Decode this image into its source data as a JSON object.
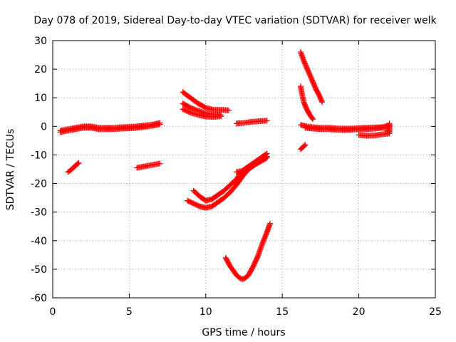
{
  "chart_data": {
    "type": "scatter",
    "title": "Day 078 of 2019, Sidereal Day-to-day VTEC variation (SDTVAR) for receiver welk",
    "xlabel": "GPS time / hours",
    "ylabel": "SDTVAR / TECUs",
    "xlim": [
      0,
      25
    ],
    "ylim": [
      -60,
      30
    ],
    "xticks": [
      0,
      5,
      10,
      15,
      20,
      25
    ],
    "yticks": [
      -60,
      -50,
      -40,
      -30,
      -20,
      -10,
      0,
      10,
      20,
      30
    ],
    "grid": true,
    "legend": "none",
    "marker": "+",
    "color": "#ff0000",
    "series": [
      {
        "points": [
          [
            0.5,
            -2
          ],
          [
            1.0,
            -1.5
          ],
          [
            1.5,
            -1
          ],
          [
            2.0,
            -0.5
          ],
          [
            2.5,
            -0.5
          ],
          [
            3.0,
            -1
          ],
          [
            3.5,
            -1
          ],
          [
            4.0,
            -1
          ],
          [
            4.5,
            -0.8
          ],
          [
            5.0,
            -0.7
          ],
          [
            5.5,
            -0.5
          ],
          [
            6.0,
            -0.2
          ],
          [
            6.5,
            0.2
          ],
          [
            7.0,
            0.7
          ]
        ]
      },
      {
        "points": [
          [
            0.5,
            -1.5
          ],
          [
            1.0,
            -1
          ],
          [
            1.5,
            -0.5
          ],
          [
            2.0,
            0
          ],
          [
            2.5,
            0
          ],
          [
            3.0,
            -0.5
          ],
          [
            3.5,
            -0.5
          ],
          [
            4.0,
            -0.5
          ],
          [
            4.5,
            -0.3
          ],
          [
            5.0,
            -0.2
          ],
          [
            5.5,
            0
          ],
          [
            6.0,
            0.3
          ],
          [
            6.5,
            0.6
          ],
          [
            7.0,
            1.2
          ]
        ]
      },
      {
        "points": [
          [
            1.0,
            -16
          ],
          [
            1.2,
            -15.2
          ],
          [
            1.4,
            -14.2
          ],
          [
            1.6,
            -13.2
          ],
          [
            1.7,
            -12.8
          ]
        ]
      },
      {
        "points": [
          [
            5.5,
            -14.5
          ],
          [
            6.0,
            -14
          ],
          [
            6.5,
            -13.5
          ],
          [
            7.0,
            -13
          ]
        ]
      },
      {
        "points": [
          [
            8.5,
            12
          ],
          [
            9.0,
            10
          ],
          [
            9.5,
            8
          ],
          [
            10.0,
            6.5
          ],
          [
            10.5,
            5.8
          ],
          [
            11.0,
            5.8
          ],
          [
            11.5,
            5.6
          ]
        ]
      },
      {
        "points": [
          [
            8.5,
            8
          ],
          [
            9.0,
            6.5
          ],
          [
            9.5,
            5.5
          ],
          [
            10.0,
            4.5
          ],
          [
            10.5,
            4.2
          ],
          [
            11.0,
            4
          ]
        ]
      },
      {
        "points": [
          [
            8.5,
            6
          ],
          [
            9.0,
            4.8
          ],
          [
            9.5,
            4
          ],
          [
            10.0,
            3.4
          ],
          [
            10.5,
            3.3
          ],
          [
            11.0,
            3.5
          ]
        ]
      },
      {
        "points": [
          [
            12.0,
            1
          ],
          [
            12.5,
            1.2
          ],
          [
            13.0,
            1.6
          ],
          [
            13.5,
            1.8
          ],
          [
            14.0,
            2
          ]
        ]
      },
      {
        "points": [
          [
            9.2,
            -22.5
          ],
          [
            9.6,
            -24.5
          ],
          [
            10.0,
            -26
          ],
          [
            10.4,
            -25.5
          ],
          [
            10.8,
            -24
          ],
          [
            11.2,
            -22.5
          ],
          [
            11.6,
            -20.5
          ],
          [
            12.0,
            -18.5
          ],
          [
            12.4,
            -15.5
          ],
          [
            12.8,
            -14
          ],
          [
            13.2,
            -12.5
          ],
          [
            13.6,
            -11
          ],
          [
            14.0,
            -9.5
          ]
        ]
      },
      {
        "points": [
          [
            8.8,
            -26
          ],
          [
            9.2,
            -27
          ],
          [
            9.6,
            -28
          ],
          [
            10.0,
            -28.5
          ],
          [
            10.4,
            -28
          ],
          [
            10.8,
            -26.5
          ],
          [
            11.2,
            -25
          ],
          [
            11.6,
            -23
          ],
          [
            12.0,
            -20.5
          ],
          [
            12.4,
            -17.5
          ],
          [
            12.8,
            -15
          ],
          [
            13.2,
            -13.5
          ],
          [
            13.6,
            -12
          ],
          [
            14.0,
            -10.5
          ]
        ]
      },
      {
        "points": [
          [
            12.0,
            -16
          ],
          [
            12.5,
            -15.5
          ],
          [
            13.0,
            -14
          ],
          [
            13.5,
            -12.5
          ],
          [
            14.0,
            -11
          ]
        ]
      },
      {
        "points": [
          [
            11.3,
            -46
          ],
          [
            11.6,
            -49
          ],
          [
            12.0,
            -52
          ],
          [
            12.2,
            -53
          ],
          [
            12.4,
            -53.5
          ],
          [
            12.6,
            -53
          ],
          [
            12.8,
            -52
          ],
          [
            13.1,
            -49
          ],
          [
            13.4,
            -45.5
          ],
          [
            13.7,
            -41
          ],
          [
            14.0,
            -37
          ],
          [
            14.2,
            -34
          ]
        ]
      },
      {
        "points": [
          [
            16.2,
            26
          ],
          [
            16.4,
            23
          ],
          [
            16.6,
            20.5
          ],
          [
            16.8,
            18
          ],
          [
            17.0,
            15.5
          ],
          [
            17.2,
            13
          ],
          [
            17.4,
            11
          ],
          [
            17.6,
            8.5
          ]
        ]
      },
      {
        "points": [
          [
            16.2,
            14
          ],
          [
            16.3,
            11
          ],
          [
            16.4,
            8.5
          ],
          [
            16.6,
            6
          ],
          [
            16.8,
            4
          ],
          [
            17.0,
            2.5
          ]
        ]
      },
      {
        "points": [
          [
            16.2,
            -8
          ],
          [
            16.3,
            -7.5
          ],
          [
            16.5,
            -6.5
          ]
        ]
      },
      {
        "points": [
          [
            16.2,
            0.5
          ],
          [
            16.6,
            0
          ],
          [
            17.0,
            -0.3
          ],
          [
            17.5,
            -0.5
          ],
          [
            18.0,
            -0.5
          ],
          [
            18.5,
            -0.7
          ],
          [
            19.0,
            -0.8
          ],
          [
            19.5,
            -0.8
          ],
          [
            20.0,
            -0.6
          ],
          [
            20.5,
            -0.5
          ],
          [
            21.0,
            -0.4
          ],
          [
            21.5,
            -0.3
          ],
          [
            22.0,
            0
          ]
        ]
      },
      {
        "points": [
          [
            16.5,
            -0.5
          ],
          [
            17.0,
            -0.8
          ],
          [
            17.5,
            -1
          ],
          [
            18.0,
            -1
          ],
          [
            18.5,
            -1.2
          ],
          [
            19.0,
            -1.3
          ],
          [
            19.5,
            -1.2
          ],
          [
            20.0,
            -1
          ],
          [
            20.5,
            -1
          ],
          [
            21.0,
            -0.8
          ],
          [
            21.5,
            -0.5
          ],
          [
            22.0,
            0.5
          ]
        ]
      },
      {
        "points": [
          [
            20.0,
            -3
          ],
          [
            20.5,
            -3.3
          ],
          [
            21.0,
            -3.2
          ],
          [
            21.5,
            -2.8
          ],
          [
            22.0,
            -2.5
          ]
        ]
      },
      {
        "points": [
          [
            21.8,
            -1.5
          ],
          [
            22.0,
            -2
          ],
          [
            22.0,
            -0.5
          ],
          [
            22.0,
            1
          ]
        ]
      }
    ]
  }
}
